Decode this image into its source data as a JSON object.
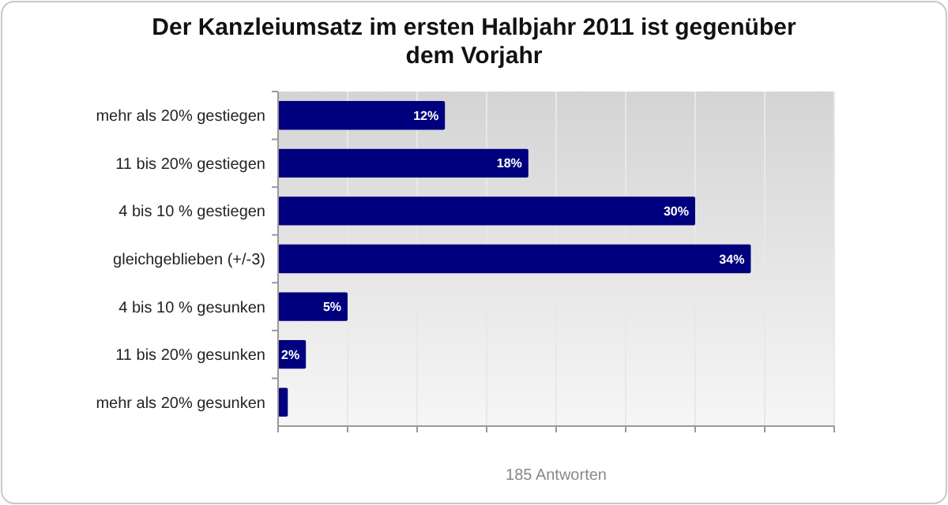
{
  "chart_data": {
    "type": "bar",
    "orientation": "horizontal",
    "title": "Der Kanzleiumsatz im ersten Halbjahr 2011 ist gegenüber dem Vorjahr",
    "categories": [
      "mehr als 20% gestiegen",
      "11 bis 20% gestiegen",
      "4 bis 10 % gestiegen",
      "gleichgeblieben (+/-3)",
      "4 bis 10 % gesunken",
      "11 bis 20% gesunken",
      "mehr als 20% gesunken"
    ],
    "values": [
      12,
      18,
      30,
      34,
      5,
      2,
      0.7
    ],
    "value_labels": [
      "12%",
      "18%",
      "30%",
      "34%",
      "5%",
      "2%",
      null
    ],
    "color": "#00007f",
    "xlim": [
      0,
      40
    ],
    "xticks": [
      {
        "value": 0,
        "label": null
      },
      {
        "value": 5,
        "label": null
      },
      {
        "value": 10,
        "label": null
      },
      {
        "value": 15,
        "label": null
      },
      {
        "value": 20,
        "label": null
      },
      {
        "value": 25,
        "label": null
      },
      {
        "value": 30,
        "label": null
      },
      {
        "value": 35,
        "label": null
      },
      {
        "value": 40,
        "label": null
      }
    ],
    "tick_labels": "y",
    "grid": "x",
    "annotations": [
      "185 Antworten"
    ]
  }
}
